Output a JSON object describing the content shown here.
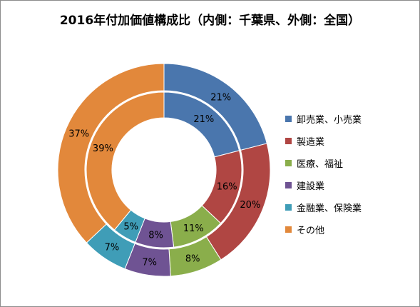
{
  "chart_data": {
    "type": "pie",
    "title": "2016年付加価値構成比（内側：千葉県、外側：全国）",
    "categories": [
      "卸売業、小売業",
      "製造業",
      "医療、福祉",
      "建設業",
      "金融業、保険業",
      "その他"
    ],
    "colors": [
      "#4a76ad",
      "#b04643",
      "#8aae4b",
      "#6f5393",
      "#3f9db7",
      "#e2883b"
    ],
    "series": [
      {
        "values": [
          21,
          16,
          11,
          8,
          5,
          39
        ],
        "labels": [
          "21%",
          "16%",
          "11%",
          "8%",
          "5%",
          "39%"
        ]
      },
      {
        "values": [
          21,
          20,
          8,
          7,
          7,
          37
        ],
        "labels": [
          "21%",
          "20%",
          "8%",
          "7%",
          "7%",
          "37%"
        ]
      }
    ],
    "legend_position": "right"
  }
}
